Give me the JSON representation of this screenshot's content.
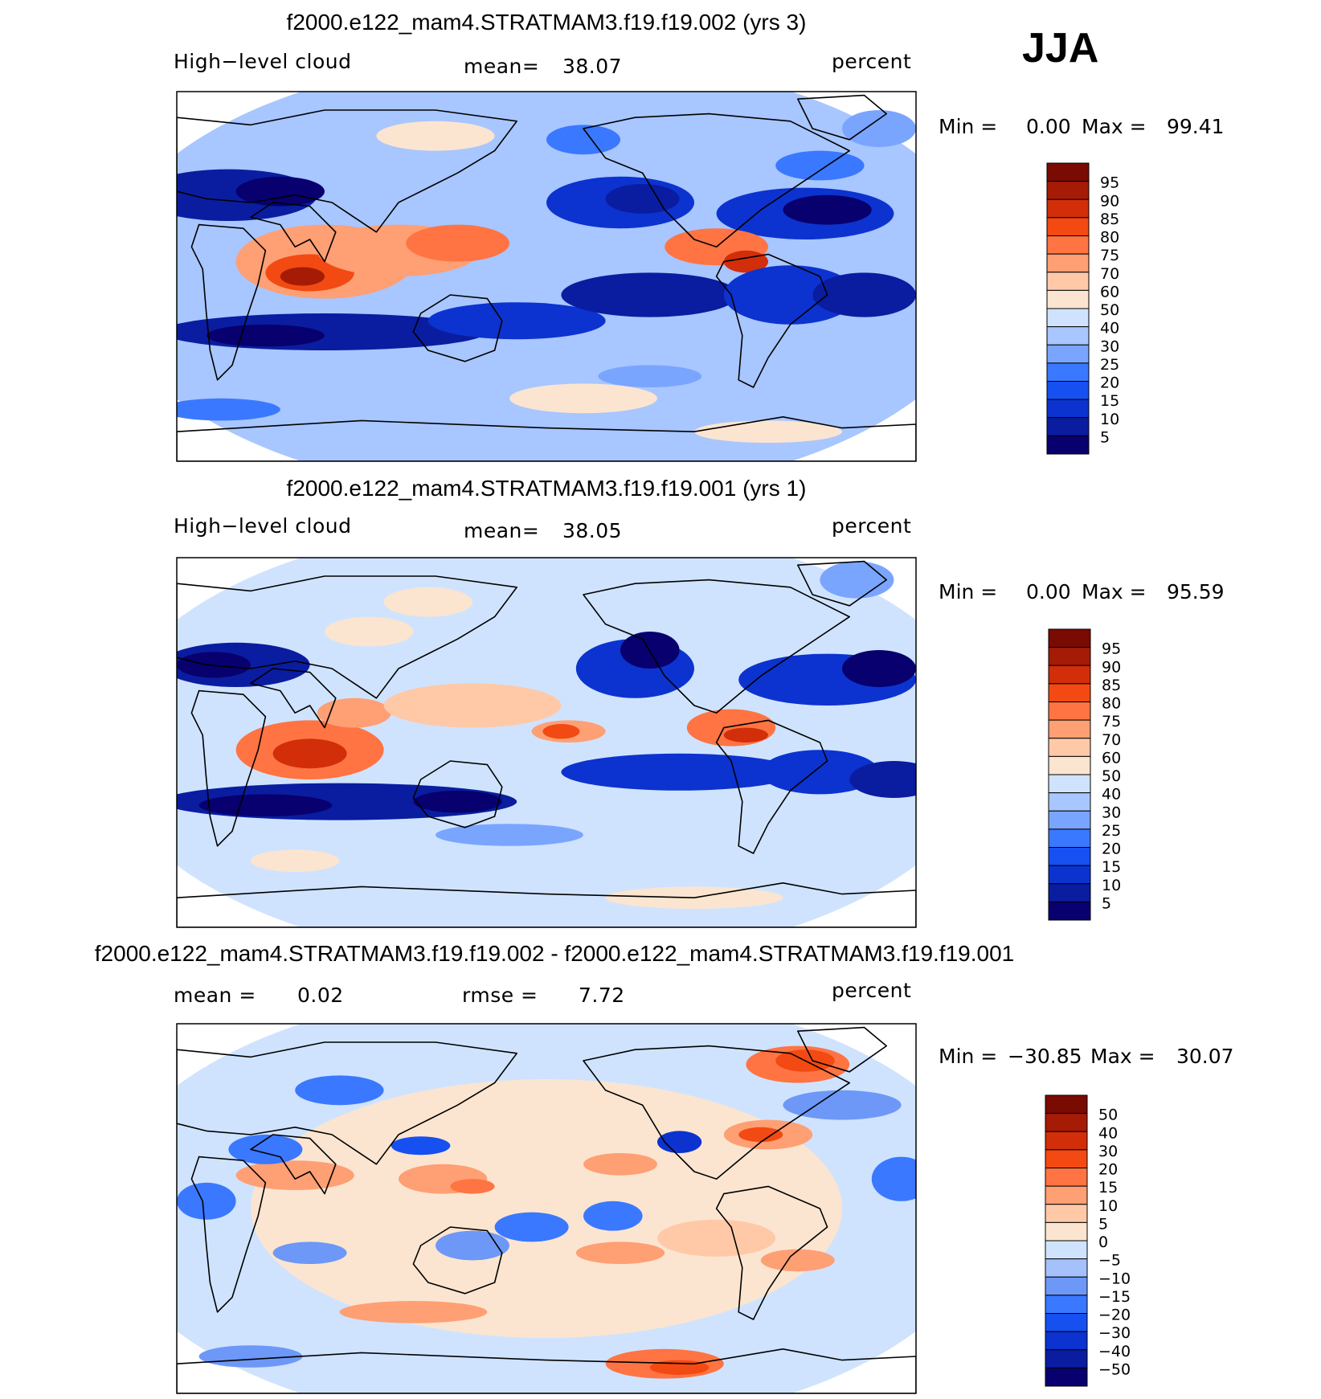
{
  "season": "JJA",
  "colors": {
    "abs_scale": [
      "#08006e",
      "#0a1da0",
      "#0c33cf",
      "#1650f0",
      "#3a78ff",
      "#7aa5ff",
      "#a8c6ff",
      "#cfe3ff",
      "#fbe5d0",
      "#ffc9a8",
      "#ff9f74",
      "#ff7442",
      "#f24a12",
      "#d22e0a",
      "#a51b06",
      "#7a0b02"
    ],
    "diff_scale": [
      "#08006e",
      "#0a1da0",
      "#0c33cf",
      "#1650f0",
      "#3a78ff",
      "#6d98f7",
      "#a4c1fb",
      "#cfe3ff",
      "#fbe5d0",
      "#ffc9a8",
      "#ff9f74",
      "#ff7442",
      "#f24a12",
      "#d22e0a",
      "#a51b06",
      "#7a0b02"
    ],
    "frame": "#000000"
  },
  "panels": [
    {
      "title": "f2000.e122_mam4.STRATMAM3.f19.f19.002 (yrs 3)",
      "left_label": "High−level cloud",
      "mean_label": "mean=",
      "mean_value": "38.07",
      "units": "percent",
      "min_label": "Min =",
      "min_value": "0.00",
      "max_label": "Max =",
      "max_value": "99.41",
      "colorbar_ticks": [
        "95",
        "90",
        "85",
        "80",
        "75",
        "70",
        "60",
        "50",
        "40",
        "30",
        "25",
        "20",
        "15",
        "10",
        "5"
      ]
    },
    {
      "title": "f2000.e122_mam4.STRATMAM3.f19.f19.001 (yrs 1)",
      "left_label": "High−level cloud",
      "mean_label": "mean=",
      "mean_value": "38.05",
      "units": "percent",
      "min_label": "Min =",
      "min_value": "0.00",
      "max_label": "Max =",
      "max_value": "95.59",
      "colorbar_ticks": [
        "95",
        "90",
        "85",
        "80",
        "75",
        "70",
        "60",
        "50",
        "40",
        "30",
        "25",
        "20",
        "15",
        "10",
        "5"
      ]
    },
    {
      "title": "f2000.e122_mam4.STRATMAM3.f19.f19.002 - f2000.e122_mam4.STRATMAM3.f19.f19.001",
      "left_label": "mean =",
      "left_value": "0.02",
      "mean_label": "rmse =",
      "mean_value": "7.72",
      "units": "percent",
      "min_label": "Min =",
      "min_value": "−30.85",
      "max_label": "Max =",
      "max_value": "30.07",
      "colorbar_ticks": [
        "50",
        "40",
        "30",
        "20",
        "15",
        "10",
        "5",
        "0",
        "−5",
        "−10",
        "−15",
        "−20",
        "−30",
        "−40",
        "−50"
      ]
    }
  ],
  "chart_data": [
    {
      "type": "heatmap",
      "title": "f2000.e122_mam4.STRATMAM3.f19.f19.002 (yrs 3)",
      "variable": "High-level cloud",
      "units": "percent",
      "mean": 38.07,
      "min": 0.0,
      "max": 99.41,
      "levels": [
        5,
        10,
        15,
        20,
        25,
        30,
        40,
        50,
        60,
        70,
        75,
        80,
        85,
        90,
        95
      ]
    },
    {
      "type": "heatmap",
      "title": "f2000.e122_mam4.STRATMAM3.f19.f19.001 (yrs 1)",
      "variable": "High-level cloud",
      "units": "percent",
      "mean": 38.05,
      "min": 0.0,
      "max": 95.59,
      "levels": [
        5,
        10,
        15,
        20,
        25,
        30,
        40,
        50,
        60,
        70,
        75,
        80,
        85,
        90,
        95
      ]
    },
    {
      "type": "heatmap",
      "title": "f2000.e122_mam4.STRATMAM3.f19.f19.002 - f2000.e122_mam4.STRATMAM3.f19.f19.001",
      "units": "percent",
      "mean": 0.02,
      "rmse": 7.72,
      "min": -30.85,
      "max": 30.07,
      "levels": [
        -50,
        -40,
        -30,
        -20,
        -15,
        -10,
        -5,
        0,
        5,
        10,
        15,
        20,
        30,
        40,
        50
      ]
    }
  ]
}
